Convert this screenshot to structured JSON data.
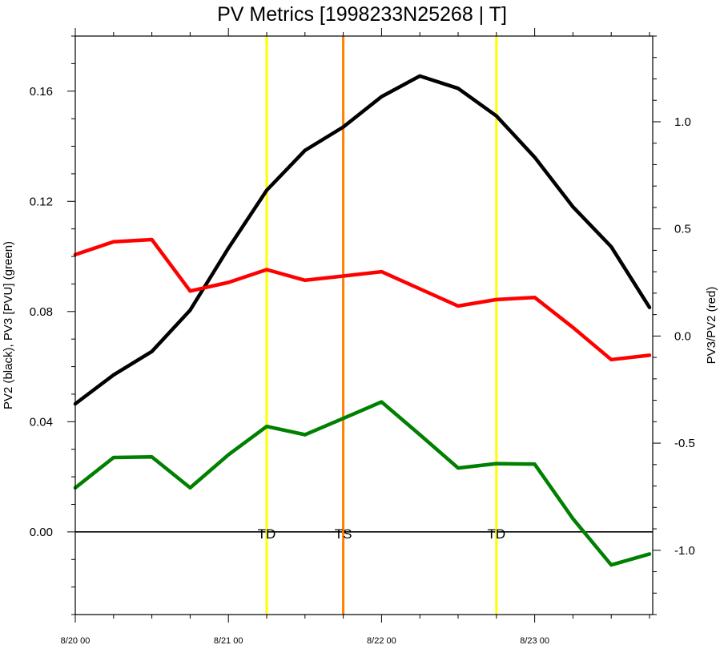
{
  "chart_data": {
    "type": "line",
    "title": "PV Metrics [1998233N25268 | T]",
    "ylabel_left": "PV2 (black), PV3 [PVU] (green)",
    "ylabel_right": "PV3/PV2 (red)",
    "x_hours": [
      0,
      6,
      12,
      18,
      24,
      30,
      36,
      42,
      48,
      54,
      60,
      66,
      72,
      78,
      84,
      90
    ],
    "xlim": [
      0,
      90.5
    ],
    "xticks": [
      {
        "hour": 0,
        "label": "8/20 00"
      },
      {
        "hour": 24,
        "label": "8/21 00"
      },
      {
        "hour": 48,
        "label": "8/22 00"
      },
      {
        "hour": 72,
        "label": "8/23 00"
      }
    ],
    "ylim_left": [
      -0.03,
      0.18
    ],
    "yticks_left": [
      {
        "value": 0.16,
        "label": "0.16"
      },
      {
        "value": 0.12,
        "label": "0.12"
      },
      {
        "value": 0.08,
        "label": "0.08"
      },
      {
        "value": 0.04,
        "label": "0.04"
      },
      {
        "value": 0.0,
        "label": "0.00"
      }
    ],
    "ylim_right": [
      -1.3,
      1.4
    ],
    "yticks_right": [
      {
        "value": 1.0,
        "label": "1.0"
      },
      {
        "value": 0.5,
        "label": "0.5"
      },
      {
        "value": 0.0,
        "label": "0.0"
      },
      {
        "value": -0.5,
        "label": "-0.5"
      },
      {
        "value": -1.0,
        "label": "-1.0"
      }
    ],
    "series": [
      {
        "name": "PV2",
        "axis": "left",
        "color": "#000000",
        "values": [
          0.0465,
          0.057,
          0.0655,
          0.0805,
          0.103,
          0.124,
          0.1385,
          0.147,
          0.158,
          0.1655,
          0.161,
          0.151,
          0.136,
          0.118,
          0.1035,
          0.0815
        ]
      },
      {
        "name": "PV3",
        "axis": "left",
        "color": "#008000",
        "values": [
          0.016,
          0.027,
          0.0272,
          0.016,
          0.028,
          0.0383,
          0.0353,
          0.0412,
          0.0472,
          0.0353,
          0.0232,
          0.0248,
          0.0246,
          0.0048,
          -0.012,
          -0.008
        ]
      },
      {
        "name": "PV3/PV2",
        "axis": "right",
        "color": "#ff0000",
        "values": [
          0.38,
          0.44,
          0.45,
          0.21,
          0.25,
          0.31,
          0.26,
          0.28,
          0.3,
          0.22,
          0.14,
          0.17,
          0.18,
          0.04,
          -0.11,
          -0.09
        ]
      }
    ],
    "events": [
      {
        "hour": 30,
        "label": "TD",
        "color": "#ffff00"
      },
      {
        "hour": 42,
        "label": "TS",
        "color": "#ff8000"
      },
      {
        "hour": 66,
        "label": "TD",
        "color": "#ffff00"
      }
    ],
    "zero_line_left": 0.0
  }
}
